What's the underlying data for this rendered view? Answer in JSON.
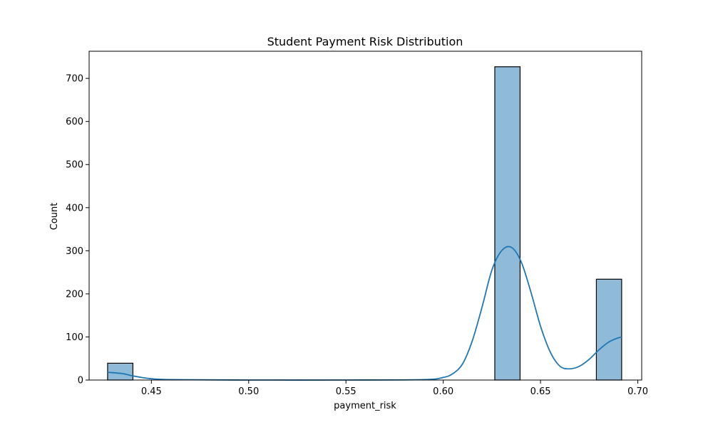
{
  "chart_data": {
    "type": "bar",
    "title": "Student Payment Risk Distribution",
    "xlabel": "payment_risk",
    "ylabel": "Count",
    "xlim": [
      0.418,
      0.702
    ],
    "ylim": [
      0,
      763
    ],
    "xticks": [
      0.45,
      0.5,
      0.55,
      0.6,
      0.65,
      0.7
    ],
    "xtick_labels": [
      "0.45",
      "0.50",
      "0.55",
      "0.60",
      "0.65",
      "0.70"
    ],
    "yticks": [
      0,
      100,
      200,
      300,
      400,
      500,
      600,
      700
    ],
    "ytick_labels": [
      "0",
      "100",
      "200",
      "300",
      "400",
      "500",
      "600",
      "700"
    ],
    "bins": [
      {
        "x0": 0.4275,
        "x1": 0.4405,
        "count": 39
      },
      {
        "x0": 0.6265,
        "x1": 0.6395,
        "count": 727
      },
      {
        "x0": 0.6787,
        "x1": 0.6917,
        "count": 234
      }
    ],
    "kde": {
      "x": [
        0.4275,
        0.435,
        0.44,
        0.445,
        0.45,
        0.46,
        0.5,
        0.55,
        0.59,
        0.6,
        0.605,
        0.61,
        0.615,
        0.62,
        0.625,
        0.63,
        0.635,
        0.64,
        0.645,
        0.65,
        0.655,
        0.66,
        0.665,
        0.67,
        0.675,
        0.68,
        0.685,
        0.69,
        0.6917
      ],
      "y": [
        18,
        15,
        10,
        6,
        3,
        1,
        0,
        0,
        1,
        6,
        15,
        38,
        92,
        170,
        255,
        300,
        308,
        275,
        205,
        125,
        65,
        32,
        26,
        32,
        48,
        70,
        88,
        98,
        99
      ]
    },
    "grid": false,
    "colors": {
      "bar_fill": "#8fbbd9",
      "bar_edge": "#000000",
      "kde_line": "#1f77b4",
      "axes": "#000000"
    }
  }
}
